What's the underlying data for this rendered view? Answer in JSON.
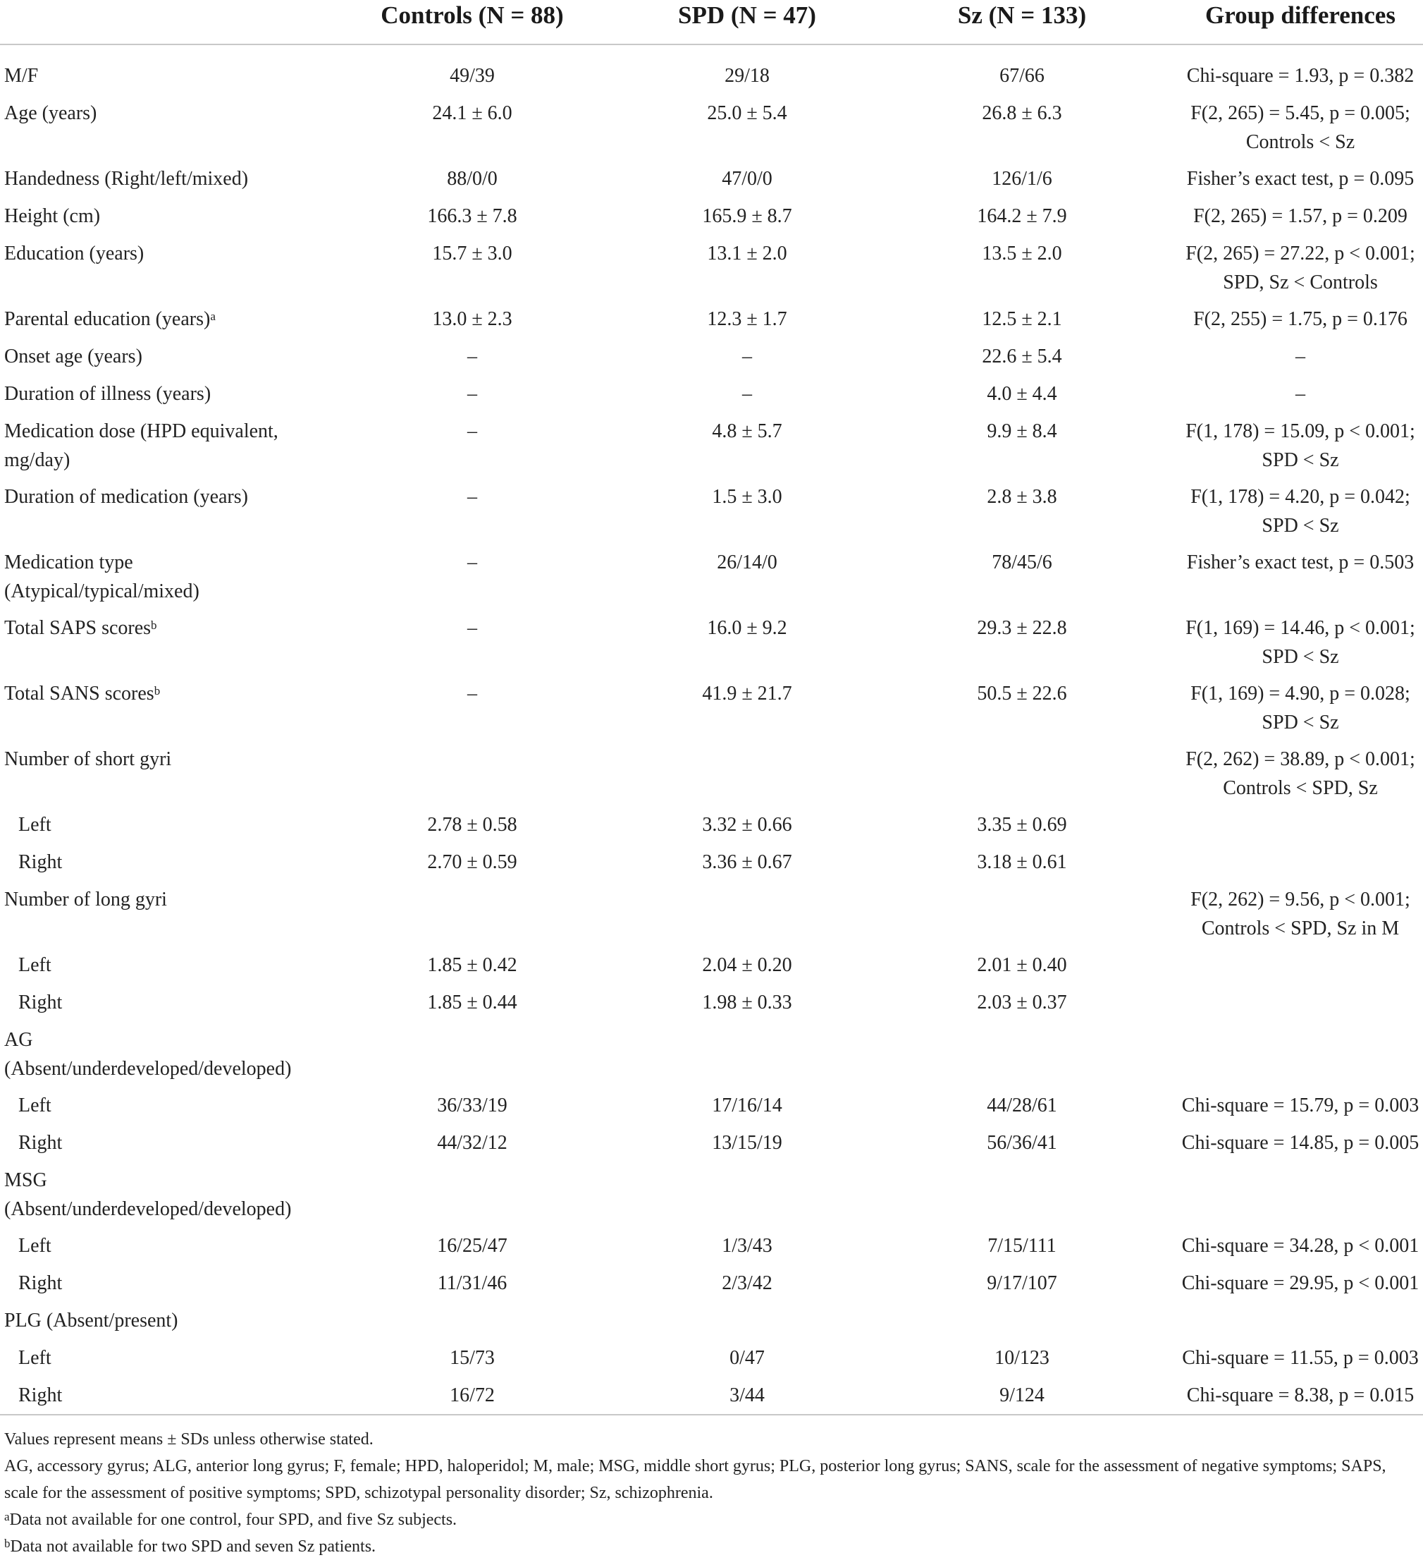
{
  "header": {
    "label": "",
    "controls": "Controls (N = 88)",
    "spd": "SPD (N = 47)",
    "sz": "Sz (N = 133)",
    "diff": "Group differences"
  },
  "rows": [
    {
      "label": "M/F",
      "c": "49/39",
      "spd": "29/18",
      "sz": "67/66",
      "diff": [
        "Chi-square = 1.93, p = 0.382"
      ]
    },
    {
      "label": "Age (years)",
      "c": "24.1 ± 6.0",
      "spd": "25.0 ± 5.4",
      "sz": "26.8 ± 6.3",
      "diff": [
        "F(2, 265) = 5.45, p = 0.005;",
        "Controls < Sz"
      ]
    },
    {
      "label": "Handedness (Right/left/mixed)",
      "c": "88/0/0",
      "spd": "47/0/0",
      "sz": "126/1/6",
      "diff": [
        "Fisher’s exact test, p = 0.095"
      ]
    },
    {
      "label": "Height (cm)",
      "c": "166.3 ± 7.8",
      "spd": "165.9 ± 8.7",
      "sz": "164.2 ± 7.9",
      "diff": [
        "F(2, 265) = 1.57, p = 0.209"
      ]
    },
    {
      "label": "Education (years)",
      "c": "15.7 ± 3.0",
      "spd": "13.1 ± 2.0",
      "sz": "13.5 ± 2.0",
      "diff": [
        "F(2, 265) = 27.22, p < 0.001;",
        "SPD, Sz < Controls"
      ]
    },
    {
      "label": "Parental education (years)",
      "sup": "a",
      "c": "13.0 ± 2.3",
      "spd": "12.3 ± 1.7",
      "sz": "12.5 ± 2.1",
      "diff": [
        "F(2, 255) = 1.75, p = 0.176"
      ]
    },
    {
      "label": "Onset age (years)",
      "c": "–",
      "spd": "–",
      "sz": "22.6 ± 5.4",
      "diff": [
        "–"
      ]
    },
    {
      "label": "Duration of illness (years)",
      "c": "–",
      "spd": "–",
      "sz": "4.0 ± 4.4",
      "diff": [
        "–"
      ]
    },
    {
      "label": "Medication dose (HPD equivalent,",
      "label2": "mg/day)",
      "c": "–",
      "spd": "4.8 ± 5.7",
      "sz": "9.9 ± 8.4",
      "diff": [
        "F(1, 178) = 15.09, p < 0.001;",
        "SPD < Sz"
      ]
    },
    {
      "label": "Duration of medication (years)",
      "c": "–",
      "spd": "1.5 ± 3.0",
      "sz": "2.8 ± 3.8",
      "diff": [
        "F(1, 178) = 4.20, p = 0.042;",
        "SPD < Sz"
      ]
    },
    {
      "label": "Medication type",
      "label2": "(Atypical/typical/mixed)",
      "c": "–",
      "spd": "26/14/0",
      "sz": "78/45/6",
      "diff": [
        "Fisher’s exact test, p = 0.503"
      ]
    },
    {
      "label": "Total SAPS scores",
      "sup": "b",
      "c": "–",
      "spd": "16.0 ± 9.2",
      "sz": "29.3 ± 22.8",
      "diff": [
        "F(1, 169) = 14.46, p < 0.001;",
        "SPD < Sz"
      ]
    },
    {
      "label": "Total SANS scores",
      "sup": "b",
      "c": "–",
      "spd": "41.9 ± 21.7",
      "sz": "50.5 ± 22.6",
      "diff": [
        "F(1, 169) = 4.90, p = 0.028;",
        "SPD < Sz"
      ]
    },
    {
      "label": "Number of short gyri",
      "c": "",
      "spd": "",
      "sz": "",
      "diff": [
        "F(2, 262) = 38.89, p < 0.001;",
        "Controls < SPD, Sz"
      ]
    },
    {
      "label": "Left",
      "indent": true,
      "c": "2.78 ± 0.58",
      "spd": "3.32 ± 0.66",
      "sz": "3.35 ± 0.69",
      "diff": []
    },
    {
      "label": "Right",
      "indent": true,
      "c": "2.70 ± 0.59",
      "spd": "3.36 ± 0.67",
      "sz": "3.18 ± 0.61",
      "diff": []
    },
    {
      "label": "Number of long gyri",
      "c": "",
      "spd": "",
      "sz": "",
      "diff": [
        "F(2, 262) = 9.56, p < 0.001;",
        "Controls < SPD, Sz in M"
      ]
    },
    {
      "label": "Left",
      "indent": true,
      "c": "1.85 ± 0.42",
      "spd": "2.04 ± 0.20",
      "sz": "2.01 ± 0.40",
      "diff": []
    },
    {
      "label": "Right",
      "indent": true,
      "c": "1.85 ± 0.44",
      "spd": "1.98 ± 0.33",
      "sz": "2.03 ± 0.37",
      "diff": []
    },
    {
      "label": "AG",
      "label2": "(Absent/underdeveloped/developed)",
      "c": "",
      "spd": "",
      "sz": "",
      "diff": []
    },
    {
      "label": "Left",
      "indent": true,
      "c": "36/33/19",
      "spd": "17/16/14",
      "sz": "44/28/61",
      "diff": [
        "Chi-square = 15.79, p = 0.003"
      ]
    },
    {
      "label": "Right",
      "indent": true,
      "c": "44/32/12",
      "spd": "13/15/19",
      "sz": "56/36/41",
      "diff": [
        "Chi-square = 14.85, p = 0.005"
      ]
    },
    {
      "label": "MSG",
      "label2": "(Absent/underdeveloped/developed)",
      "c": "",
      "spd": "",
      "sz": "",
      "diff": []
    },
    {
      "label": "Left",
      "indent": true,
      "c": "16/25/47",
      "spd": "1/3/43",
      "sz": "7/15/111",
      "diff": [
        "Chi-square = 34.28, p < 0.001"
      ]
    },
    {
      "label": "Right",
      "indent": true,
      "c": "11/31/46",
      "spd": "2/3/42",
      "sz": "9/17/107",
      "diff": [
        "Chi-square = 29.95, p < 0.001"
      ]
    },
    {
      "label": "PLG (Absent/present)",
      "c": "",
      "spd": "",
      "sz": "",
      "diff": []
    },
    {
      "label": "Left",
      "indent": true,
      "c": "15/73",
      "spd": "0/47",
      "sz": "10/123",
      "diff": [
        "Chi-square = 11.55, p = 0.003"
      ]
    },
    {
      "label": "Right",
      "indent": true,
      "c": "16/72",
      "spd": "3/44",
      "sz": "9/124",
      "diff": [
        "Chi-square = 8.38, p = 0.015"
      ]
    }
  ],
  "footnotes": {
    "values_note": "Values represent means ± SDs unless otherwise stated.",
    "abbreviations": "AG, accessory gyrus; ALG, anterior long gyrus; F, female; HPD, haloperidol; M, male; MSG, middle short gyrus; PLG, posterior long gyrus; SANS, scale for the assessment of negative symptoms; SAPS, scale for the assessment of positive symptoms; SPD, schizotypal personality disorder; Sz, schizophrenia.",
    "note_a_mark": "a",
    "note_a": "Data not available for one control, four SPD, and five Sz subjects.",
    "note_b_mark": "b",
    "note_b": "Data not available for two SPD and seven Sz patients."
  }
}
